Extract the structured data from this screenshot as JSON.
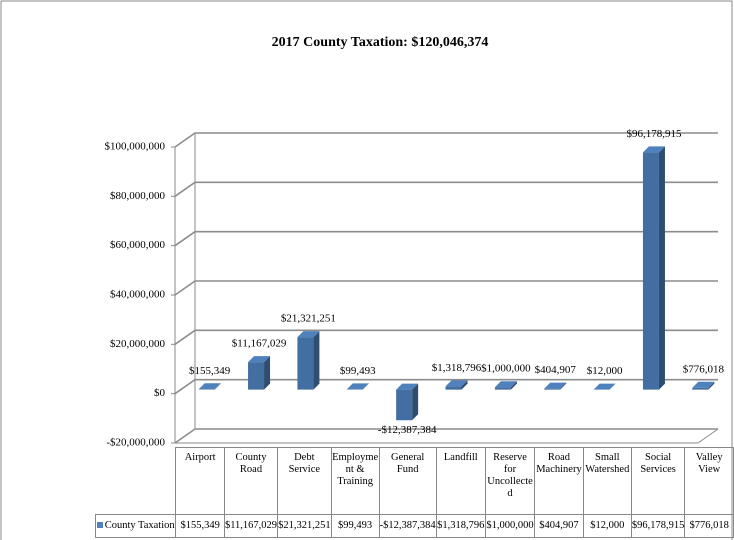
{
  "chart_data": {
    "type": "bar3d",
    "title": "2017 County Taxation: $120,046,374",
    "categories": [
      "Airport",
      "County Road",
      "Debt Service",
      "Employment & Training",
      "General Fund",
      "Landfill",
      "Reserve for Uncollected",
      "Road Machinery",
      "Small Watershed",
      "Social Services",
      "Valley View"
    ],
    "series": [
      {
        "name": "County Taxation",
        "color": "#4f81bd",
        "values": [
          155349,
          11167029,
          21321251,
          99493,
          -12387384,
          1318796,
          1000000,
          404907,
          12000,
          96178915,
          776018
        ],
        "value_labels": [
          "$155,349",
          "$11,167,029",
          "$21,321,251",
          "$99,493",
          "-$12,387,384",
          "$1,318,796",
          "$1,000,000",
          "$404,907",
          "$12,000",
          "$96,178,915",
          "$776,018"
        ]
      }
    ],
    "ylim": [
      -20000000,
      100000000
    ],
    "yticks": [
      {
        "value": -20000000,
        "label": "-$20,000,000"
      },
      {
        "value": 0,
        "label": "$0"
      },
      {
        "value": 20000000,
        "label": "$20,000,000"
      },
      {
        "value": 40000000,
        "label": "$40,000,000"
      },
      {
        "value": 60000000,
        "label": "$60,000,000"
      },
      {
        "value": 80000000,
        "label": "$80,000,000"
      },
      {
        "value": 100000000,
        "label": "$100,000,000"
      }
    ],
    "grid": true
  }
}
